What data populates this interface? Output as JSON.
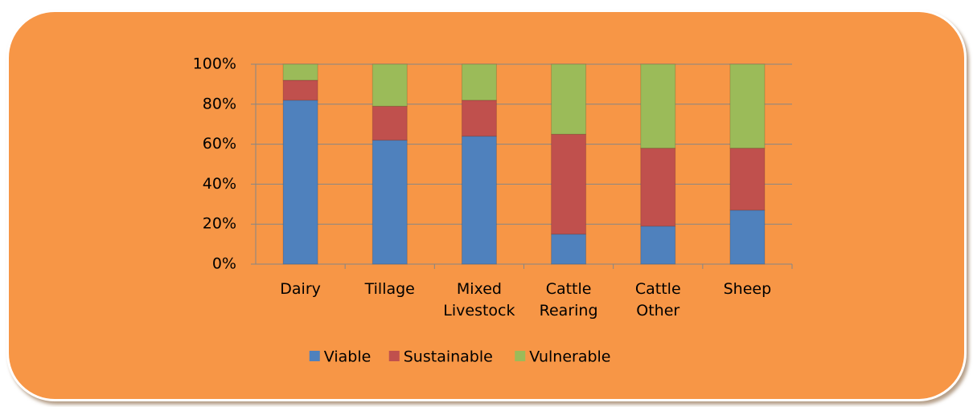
{
  "chart_data": {
    "type": "stacked-bar",
    "categories": [
      "Dairy",
      "Tillage",
      "Mixed Livestock",
      "Cattle Rearing",
      "Cattle Other",
      "Sheep"
    ],
    "series": [
      {
        "name": "Viable",
        "color": "#4f81bd",
        "values": [
          82,
          62,
          64,
          15,
          19,
          27
        ]
      },
      {
        "name": "Sustainable",
        "color": "#c0504d",
        "values": [
          10,
          17,
          18,
          50,
          39,
          31
        ]
      },
      {
        "name": "Vulnerable",
        "color": "#9bbb59",
        "values": [
          8,
          21,
          18,
          35,
          42,
          42
        ]
      }
    ],
    "ylim": [
      0,
      100
    ],
    "yticks": [
      {
        "value": 0,
        "label": "0%"
      },
      {
        "value": 20,
        "label": "20%"
      },
      {
        "value": 40,
        "label": "40%"
      },
      {
        "value": 60,
        "label": "60%"
      },
      {
        "value": 80,
        "label": "80%"
      },
      {
        "value": 100,
        "label": "100%"
      }
    ],
    "grid": true,
    "legend": "bottom"
  }
}
